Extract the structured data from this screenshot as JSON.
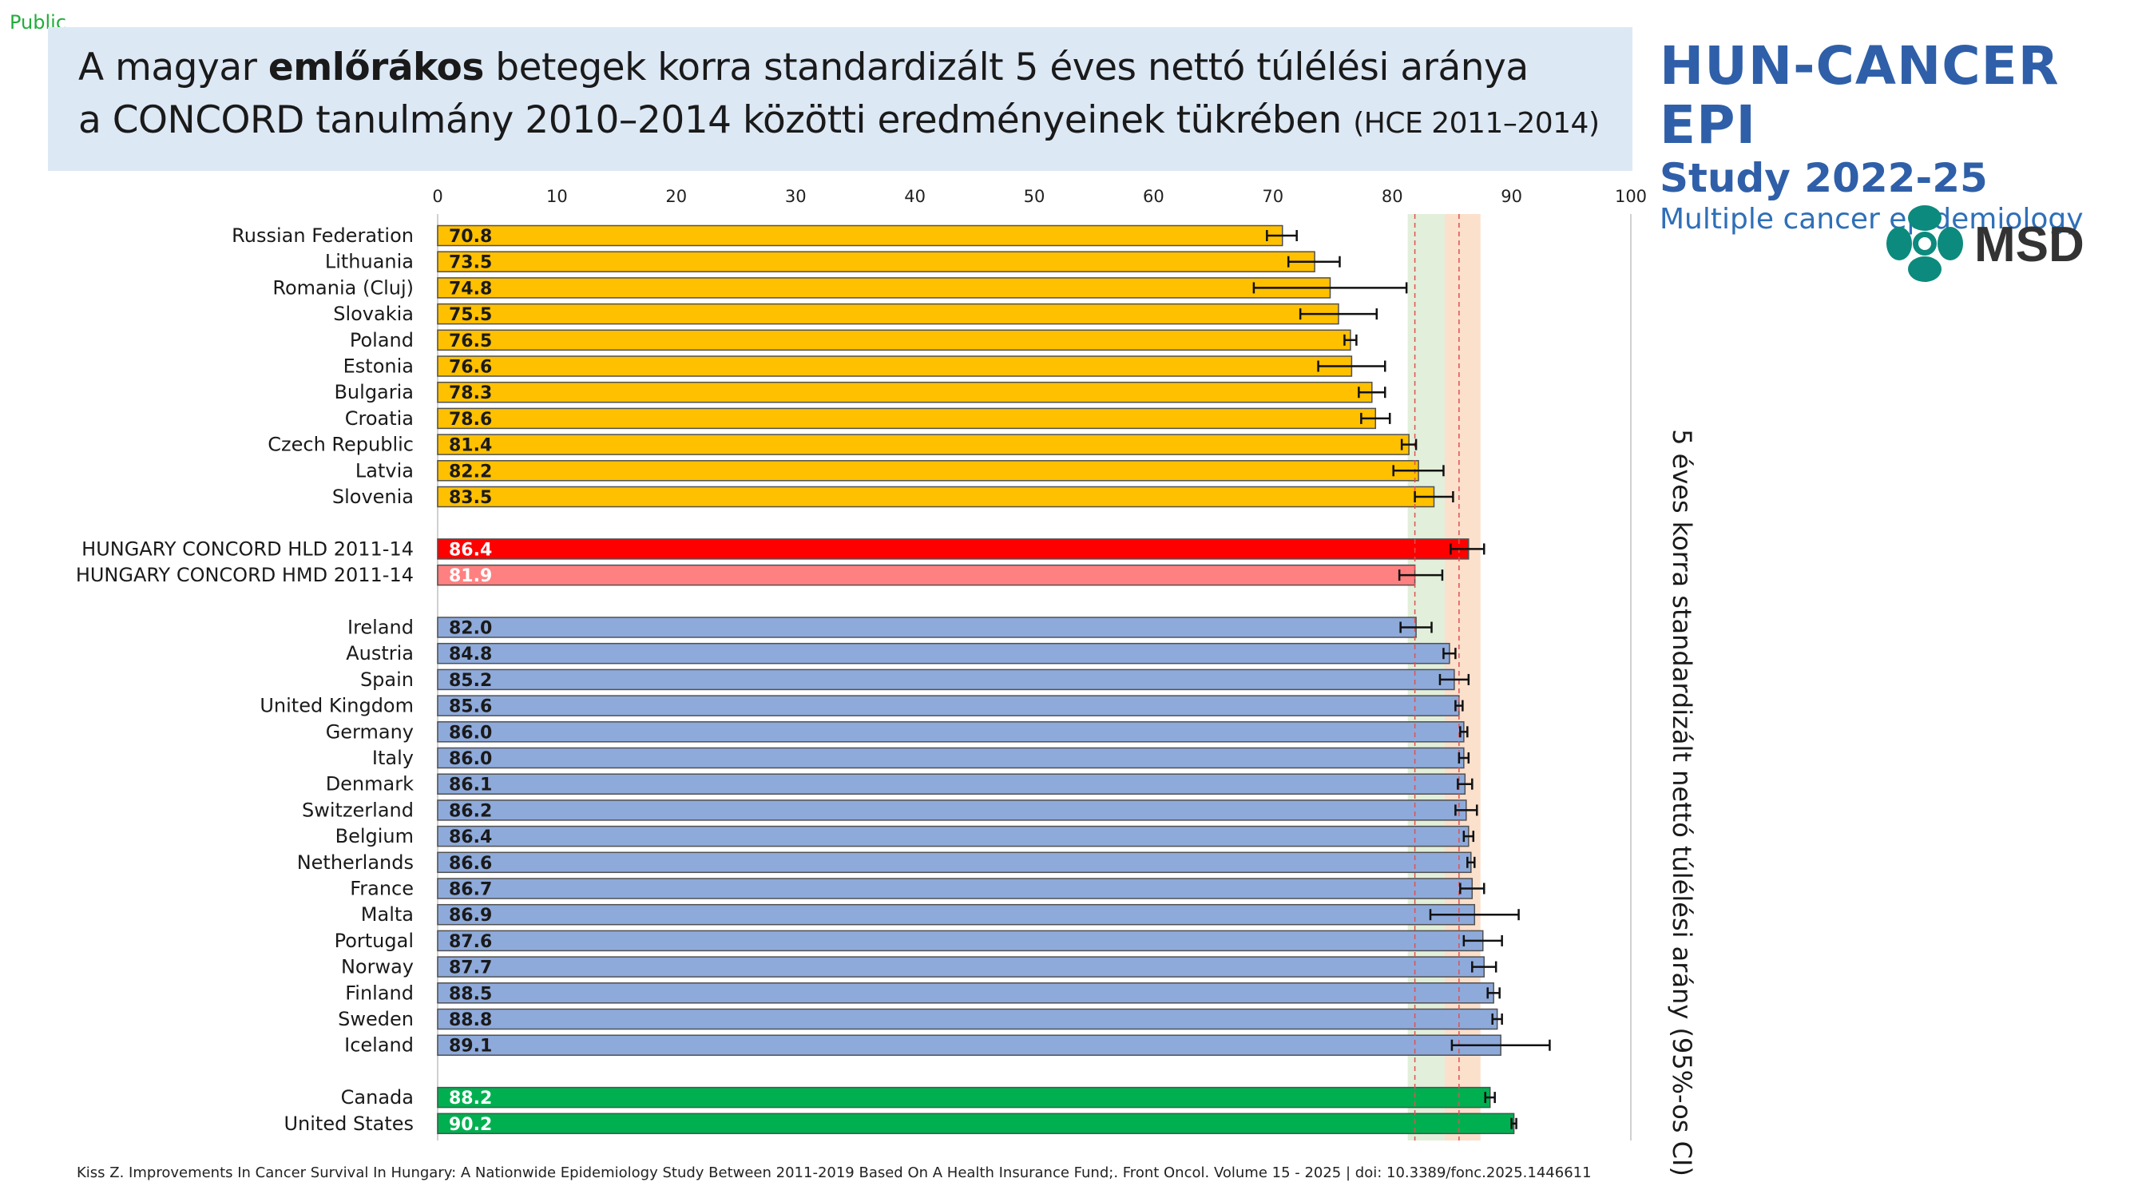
{
  "public_label": "Public",
  "title": {
    "line1_pre": "A magyar ",
    "line1_bold": "emlőrákos",
    "line1_post": " betegek korra standardizált 5 éves nettó túlélési aránya",
    "line2_main": "a CONCORD tanulmány 2010–2014 közötti eredményeinek tükrében ",
    "line2_small": "(HCE 2011–2014)"
  },
  "brand": {
    "line1": "HUN-CANCER EPI",
    "line2": "Study 2022-25",
    "line3": "Multiple cancer epidemiology",
    "logo_text": "MSD",
    "logo_color": "#0c8a7d"
  },
  "footnote": "Kiss Z. Improvements In Cancer Survival In Hungary: A Nationwide Epidemiology Study Between 2011-2019 Based On A Health Insurance Fund;. Front Oncol. Volume 15 - 2025 | doi: 10.3389/fonc.2025.1446611",
  "colors": {
    "eastern": "#ffc000",
    "hungary_hld": "#ff0000",
    "hungary_hmd": "#ff8080",
    "western": "#8eaadb",
    "north_america": "#00b050",
    "band_green": "#e2efda",
    "band_orange": "#fbe0cc",
    "ref_line": "#e05050"
  },
  "chart_data": {
    "type": "bar",
    "orientation": "horizontal",
    "x_ticks": [
      "0",
      "10",
      "20",
      "30",
      "40",
      "50",
      "60",
      "70",
      "80",
      "90",
      "100"
    ],
    "xlim": [
      0,
      100
    ],
    "y_axis_title": "5 éves korra standardizált nettó túlélési arány (95%-os CI)",
    "reference_bands": [
      {
        "from": 81.3,
        "to": 84.4,
        "color": "green"
      },
      {
        "from": 84.4,
        "to": 87.4,
        "color": "orange"
      }
    ],
    "reference_lines": [
      81.9,
      85.6
    ],
    "groups": [
      {
        "group": "eastern",
        "bars": [
          {
            "label": "Russian Federation",
            "value": 70.8,
            "value_label": "70.8",
            "ci": [
              69.5,
              72.0
            ]
          },
          {
            "label": "Lithuania",
            "value": 73.5,
            "value_label": "73.5",
            "ci": [
              71.3,
              75.6
            ]
          },
          {
            "label": "Romania (Cluj)",
            "value": 74.8,
            "value_label": "74.8",
            "ci": [
              68.4,
              81.2
            ]
          },
          {
            "label": "Slovakia",
            "value": 75.5,
            "value_label": "75.5",
            "ci": [
              72.3,
              78.7
            ]
          },
          {
            "label": "Poland",
            "value": 76.5,
            "value_label": "76.5",
            "ci": [
              76.0,
              77.0
            ]
          },
          {
            "label": "Estonia",
            "value": 76.6,
            "value_label": "76.6",
            "ci": [
              73.8,
              79.4
            ]
          },
          {
            "label": "Bulgaria",
            "value": 78.3,
            "value_label": "78.3",
            "ci": [
              77.2,
              79.4
            ]
          },
          {
            "label": "Croatia",
            "value": 78.6,
            "value_label": "78.6",
            "ci": [
              77.4,
              79.8
            ]
          },
          {
            "label": "Czech Republic",
            "value": 81.4,
            "value_label": "81.4",
            "ci": [
              80.8,
              82.0
            ]
          },
          {
            "label": "Latvia",
            "value": 82.2,
            "value_label": "82.2",
            "ci": [
              80.1,
              84.3
            ]
          },
          {
            "label": "Slovenia",
            "value": 83.5,
            "value_label": "83.5",
            "ci": [
              81.9,
              85.1
            ]
          }
        ]
      },
      {
        "group": "hungary",
        "bars": [
          {
            "label": "HUNGARY CONCORD HLD 2011-14",
            "value": 86.4,
            "value_label": "86.4",
            "ci": [
              84.9,
              87.7
            ],
            "color_key": "hungary_hld"
          },
          {
            "label": "HUNGARY CONCORD HMD 2011-14",
            "value": 81.9,
            "value_label": "81.9",
            "ci": [
              80.6,
              84.2
            ],
            "color_key": "hungary_hmd"
          }
        ]
      },
      {
        "group": "western",
        "bars": [
          {
            "label": "Ireland",
            "value": 82.0,
            "value_label": "82.0",
            "ci": [
              80.7,
              83.3
            ]
          },
          {
            "label": "Austria",
            "value": 84.8,
            "value_label": "84.8",
            "ci": [
              84.3,
              85.3
            ]
          },
          {
            "label": "Spain",
            "value": 85.2,
            "value_label": "85.2",
            "ci": [
              84.0,
              86.4
            ]
          },
          {
            "label": "United Kingdom",
            "value": 85.6,
            "value_label": "85.6",
            "ci": [
              85.3,
              85.9
            ]
          },
          {
            "label": "Germany",
            "value": 86.0,
            "value_label": "86.0",
            "ci": [
              85.7,
              86.3
            ]
          },
          {
            "label": "Italy",
            "value": 86.0,
            "value_label": "86.0",
            "ci": [
              85.6,
              86.4
            ]
          },
          {
            "label": "Denmark",
            "value": 86.1,
            "value_label": "86.1",
            "ci": [
              85.5,
              86.7
            ]
          },
          {
            "label": "Switzerland",
            "value": 86.2,
            "value_label": "86.2",
            "ci": [
              85.3,
              87.1
            ]
          },
          {
            "label": "Belgium",
            "value": 86.4,
            "value_label": "86.4",
            "ci": [
              86.0,
              86.8
            ]
          },
          {
            "label": "Netherlands",
            "value": 86.6,
            "value_label": "86.6",
            "ci": [
              86.3,
              86.9
            ]
          },
          {
            "label": "France",
            "value": 86.7,
            "value_label": "86.7",
            "ci": [
              85.7,
              87.7
            ]
          },
          {
            "label": "Malta",
            "value": 86.9,
            "value_label": "86.9",
            "ci": [
              83.2,
              90.6
            ]
          },
          {
            "label": "Portugal",
            "value": 87.6,
            "value_label": "87.6",
            "ci": [
              86.0,
              89.2
            ]
          },
          {
            "label": "Norway",
            "value": 87.7,
            "value_label": "87.7",
            "ci": [
              86.7,
              88.7
            ]
          },
          {
            "label": "Finland",
            "value": 88.5,
            "value_label": "88.5",
            "ci": [
              88.0,
              89.0
            ]
          },
          {
            "label": "Sweden",
            "value": 88.8,
            "value_label": "88.8",
            "ci": [
              88.4,
              89.2
            ]
          },
          {
            "label": "Iceland",
            "value": 89.1,
            "value_label": "89.1",
            "ci": [
              85.0,
              93.2
            ]
          }
        ]
      },
      {
        "group": "north_america",
        "bars": [
          {
            "label": "Canada",
            "value": 88.2,
            "value_label": "88.2",
            "ci": [
              87.8,
              88.6
            ]
          },
          {
            "label": "United States",
            "value": 90.2,
            "value_label": "90.2",
            "ci": [
              90.0,
              90.4
            ]
          }
        ]
      }
    ]
  }
}
